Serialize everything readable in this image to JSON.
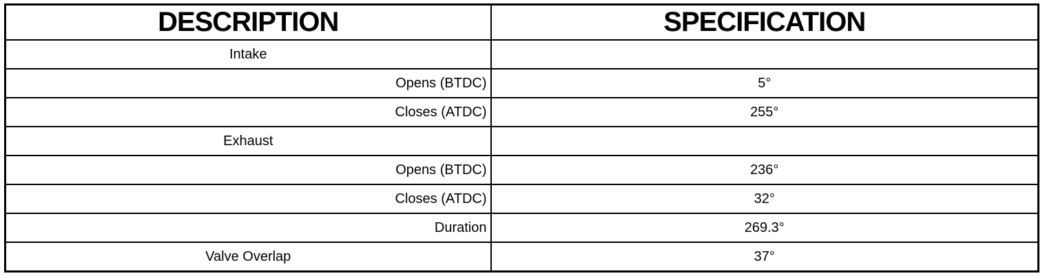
{
  "headers": {
    "description": "DESCRIPTION",
    "specification": "SPECIFICATION"
  },
  "rows": [
    {
      "description": "Intake",
      "type": "group",
      "specification": ""
    },
    {
      "description": "Opens (BTDC)",
      "type": "sub",
      "specification": "5°"
    },
    {
      "description": "Closes (ATDC)",
      "type": "sub",
      "specification": "255°"
    },
    {
      "description": "Exhaust",
      "type": "group",
      "specification": ""
    },
    {
      "description": "Opens (BTDC)",
      "type": "sub",
      "specification": "236°"
    },
    {
      "description": "Closes (ATDC)",
      "type": "sub",
      "specification": "32°"
    },
    {
      "description": "Duration",
      "type": "sub",
      "specification": "269.3°"
    },
    {
      "description": "Valve Overlap",
      "type": "group",
      "specification": "37°"
    }
  ]
}
